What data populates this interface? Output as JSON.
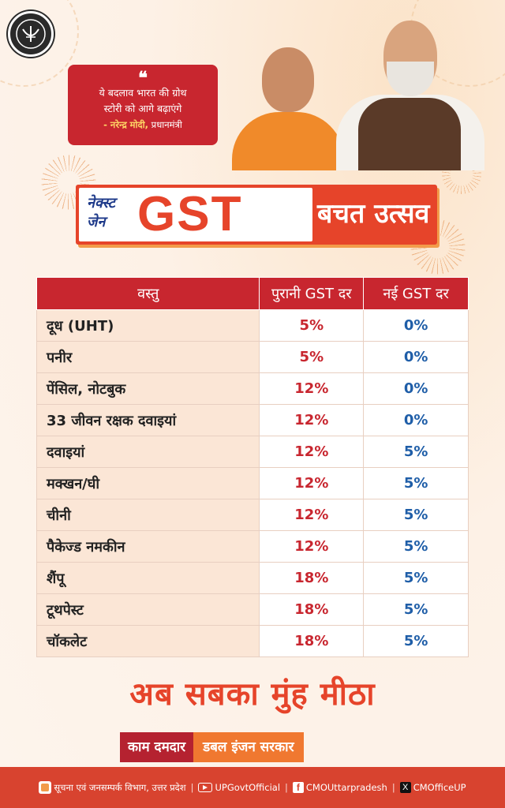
{
  "quote": {
    "mark": "❝",
    "line1": "ये बदलाव भारत की ग्रोथ",
    "line2": "स्टोरी को आगे बढ़ाएंगे",
    "author_name": "- नरेन्द्र मोदी,",
    "author_role": " प्रधानमंत्री"
  },
  "banner": {
    "nextgen_line1": "नेक्स्ट",
    "nextgen_line2": "जेन",
    "gst": "GST",
    "utsav": "बचत उत्सव"
  },
  "table": {
    "headers": [
      "वस्तु",
      "पुरानी GST दर",
      "नई GST दर"
    ],
    "rows": [
      {
        "item": "दूध (UHT)",
        "old": "5%",
        "new": "0%"
      },
      {
        "item": "पनीर",
        "old": "5%",
        "new": "0%"
      },
      {
        "item": "पेंसिल, नोटबुक",
        "old": "12%",
        "new": "0%"
      },
      {
        "item": "33 जीवन रक्षक दवाइयां",
        "old": "12%",
        "new": "0%"
      },
      {
        "item": "दवाइयां",
        "old": "12%",
        "new": "5%"
      },
      {
        "item": "मक्खन/घी",
        "old": "12%",
        "new": "5%"
      },
      {
        "item": "चीनी",
        "old": "12%",
        "new": "5%"
      },
      {
        "item": "पैकेज्ड नमकीन",
        "old": "12%",
        "new": "5%"
      },
      {
        "item": "शैंपू",
        "old": "18%",
        "new": "5%"
      },
      {
        "item": "टूथपेस्ट",
        "old": "18%",
        "new": "5%"
      },
      {
        "item": "चॉकलेट",
        "old": "18%",
        "new": "5%"
      }
    ]
  },
  "slogan": "अब सबका मुंह मीठा",
  "tagline": {
    "part1": "काम दमदार",
    "part2": "डबल इंजन सरकार"
  },
  "footer": {
    "department": "सूचना एवं जनसम्पर्क विभाग, उत्तर प्रदेश",
    "youtube": "UPGovtOfficial",
    "facebook": "CMOUttarpradesh",
    "x": "CMOfficeUP"
  },
  "colors": {
    "primary_red": "#c8262f",
    "accent_orange": "#e6442a",
    "new_rate_blue": "#1f5ea8",
    "background": "#fdf1e6"
  }
}
